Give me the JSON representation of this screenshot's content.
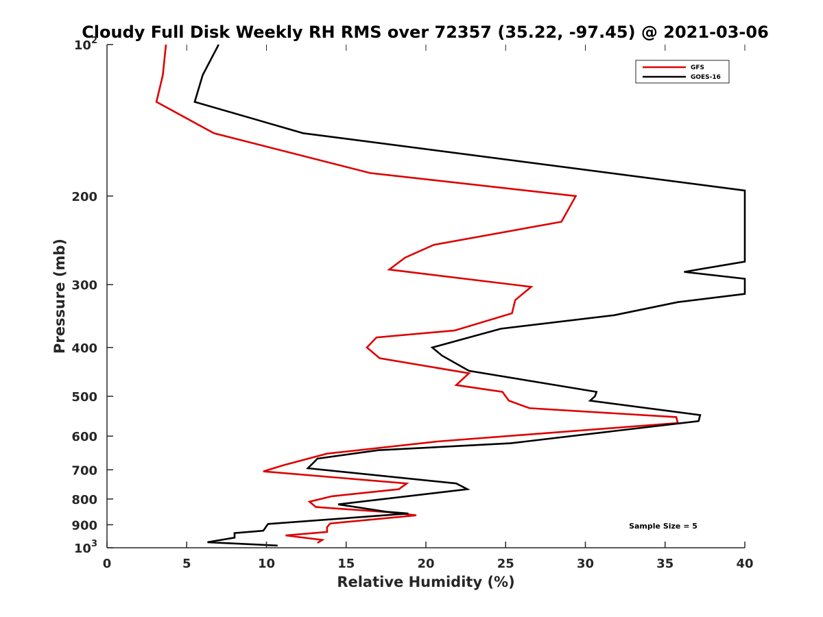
{
  "chart_data": {
    "type": "line",
    "title": "Cloudy Full Disk Weekly RH RMS over 72357 (35.22, -97.45) @ 2021-03-06",
    "xlabel": "Relative Humidity (%)",
    "ylabel": "Pressure (mb)",
    "xlim": [
      0,
      40
    ],
    "ylim": [
      100,
      1000
    ],
    "yscale": "log",
    "y_reversed": true,
    "grid": false,
    "legend_position": "top-right",
    "x_ticks": [
      0,
      5,
      10,
      15,
      20,
      25,
      30,
      35,
      40
    ],
    "y_ticks": [
      {
        "value": 100,
        "base": "10",
        "exp": "2"
      },
      {
        "value": 200,
        "label": "200"
      },
      {
        "value": 300,
        "label": "300"
      },
      {
        "value": 400,
        "label": "400"
      },
      {
        "value": 500,
        "label": "500"
      },
      {
        "value": 600,
        "label": "600"
      },
      {
        "value": 700,
        "label": "700"
      },
      {
        "value": 800,
        "label": "800"
      },
      {
        "value": 900,
        "label": "900"
      },
      {
        "value": 1000,
        "base": "10",
        "exp": "3"
      }
    ],
    "annotation": "Sample Size = 5",
    "series": [
      {
        "name": "GFS",
        "color": "#dd0000",
        "points": [
          [
            3.7,
            100
          ],
          [
            3.5,
            115
          ],
          [
            3.1,
            130
          ],
          [
            6.7,
            150
          ],
          [
            16.5,
            180
          ],
          [
            29.4,
            200
          ],
          [
            28.5,
            225
          ],
          [
            20.5,
            250
          ],
          [
            18.7,
            265
          ],
          [
            17.7,
            280
          ],
          [
            26.6,
            303
          ],
          [
            25.6,
            322
          ],
          [
            25.4,
            342
          ],
          [
            21.8,
            370
          ],
          [
            16.9,
            382
          ],
          [
            16.3,
            400
          ],
          [
            17.1,
            420
          ],
          [
            22.7,
            450
          ],
          [
            21.9,
            475
          ],
          [
            24.8,
            490
          ],
          [
            25.2,
            510
          ],
          [
            26.5,
            528
          ],
          [
            35.7,
            550
          ],
          [
            35.8,
            565
          ],
          [
            20.7,
            615
          ],
          [
            13.8,
            650
          ],
          [
            11.1,
            685
          ],
          [
            9.8,
            705
          ],
          [
            18.8,
            745
          ],
          [
            18.3,
            765
          ],
          [
            14.1,
            790
          ],
          [
            12.7,
            810
          ],
          [
            13.1,
            830
          ],
          [
            17.7,
            850
          ],
          [
            19.4,
            862
          ],
          [
            14.0,
            895
          ],
          [
            13.8,
            910
          ],
          [
            13.8,
            930
          ],
          [
            11.2,
            945
          ],
          [
            13.5,
            965
          ],
          [
            13.2,
            978
          ]
        ]
      },
      {
        "name": "GOES-16",
        "color": "#000000",
        "points": [
          [
            7.0,
            100
          ],
          [
            6.0,
            115
          ],
          [
            5.5,
            130
          ],
          [
            12.3,
            150
          ],
          [
            40.0,
            195
          ],
          [
            40.0,
            270
          ],
          [
            36.2,
            283
          ],
          [
            40.0,
            292
          ],
          [
            40.0,
            313
          ],
          [
            35.8,
            325
          ],
          [
            31.8,
            345
          ],
          [
            24.7,
            367
          ],
          [
            20.4,
            400
          ],
          [
            21.0,
            415
          ],
          [
            22.7,
            445
          ],
          [
            30.7,
            490
          ],
          [
            30.6,
            500
          ],
          [
            30.3,
            510
          ],
          [
            37.2,
            545
          ],
          [
            37.1,
            560
          ],
          [
            25.3,
            620
          ],
          [
            17.0,
            640
          ],
          [
            13.2,
            665
          ],
          [
            12.9,
            680
          ],
          [
            12.6,
            695
          ],
          [
            21.9,
            745
          ],
          [
            22.6,
            765
          ],
          [
            14.5,
            820
          ],
          [
            17.5,
            848
          ],
          [
            18.9,
            855
          ],
          [
            10.1,
            897
          ],
          [
            9.8,
            925
          ],
          [
            8.0,
            935
          ],
          [
            8.0,
            955
          ],
          [
            6.3,
            975
          ],
          [
            10.7,
            990
          ]
        ]
      }
    ]
  }
}
